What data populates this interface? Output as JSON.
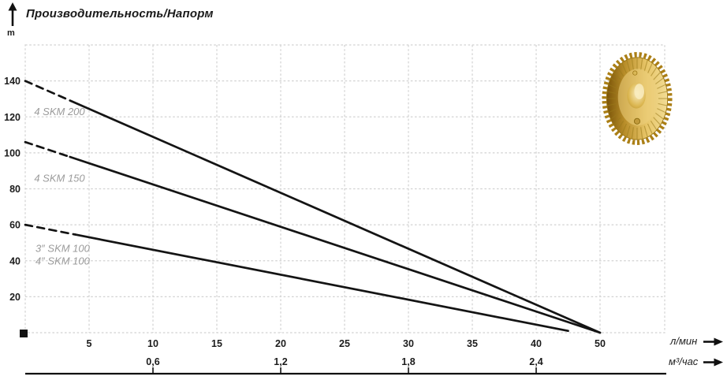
{
  "chart_data": {
    "type": "line",
    "title": "Производительность/Напорм",
    "ylabel": "m",
    "ylim": [
      0,
      160
    ],
    "grid": true,
    "y_ticks": [
      20,
      40,
      60,
      80,
      100,
      120,
      140
    ],
    "x_axis_primary": {
      "unit": "л/мин",
      "ticks": [
        {
          "label": "5",
          "pos": 5
        },
        {
          "label": "10",
          "pos": 10
        },
        {
          "label": "15",
          "pos": 15
        },
        {
          "label": "20",
          "pos": 20
        },
        {
          "label": "25",
          "pos": 25
        },
        {
          "label": "30",
          "pos": 30
        },
        {
          "label": "35",
          "pos": 35
        },
        {
          "label": "40",
          "pos": 40
        },
        {
          "label": "50",
          "pos": 45
        }
      ]
    },
    "x_axis_secondary": {
      "unit": "м³/час",
      "ticks": [
        {
          "label": "0,6",
          "pos": 10
        },
        {
          "label": "1,2",
          "pos": 20
        },
        {
          "label": "1,8",
          "pos": 30
        },
        {
          "label": "2,4",
          "pos": 40
        }
      ]
    },
    "series": [
      {
        "name": "4 SKM 200",
        "start": [
          0,
          140
        ],
        "dash_until_x": 3.5,
        "end": [
          45,
          0
        ]
      },
      {
        "name": "4 SKM 150",
        "start": [
          0,
          106
        ],
        "dash_until_x": 3.5,
        "end": [
          45,
          0
        ]
      },
      {
        "name": "SKM 100",
        "start": [
          0,
          60
        ],
        "dash_until_x": 3.9,
        "end": [
          42.5,
          1
        ]
      }
    ],
    "annotations": [
      {
        "text": "4 SKM 200",
        "x": 0.7,
        "y": 123
      },
      {
        "text": "4 SKM 150",
        "x": 0.7,
        "y": 86
      },
      {
        "text": "3″ SKM 100",
        "x": 0.8,
        "y": 47
      },
      {
        "text": "4″ SKM 100",
        "x": 0.8,
        "y": 40
      }
    ]
  },
  "colors": {
    "curve": "#141414",
    "grid": "#d2d2d2",
    "tick_text": "#1c1c1c",
    "annotation_text": "#9b9b9b",
    "axis_line": "#111111",
    "brass_dark": "#8a5a08",
    "brass_mid": "#c99b27",
    "brass_light": "#f2dc95",
    "brass_highlight": "#f9ecbf"
  }
}
